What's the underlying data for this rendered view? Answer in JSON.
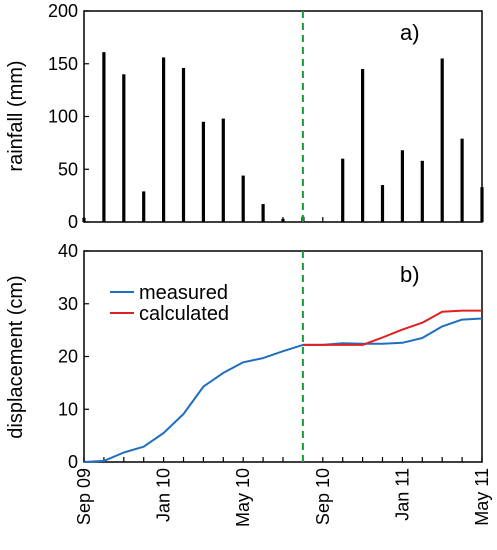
{
  "chart_data": [
    {
      "panel": "a)",
      "type": "bar",
      "ylabel": "rainfall (mm)",
      "ylim": [
        0,
        200
      ],
      "yticks": [
        0,
        50,
        100,
        150,
        200
      ],
      "x_dates": [
        "2009-09",
        "2009-10",
        "2009-11",
        "2009-12",
        "2010-01",
        "2010-02",
        "2010-03",
        "2010-04",
        "2010-05",
        "2010-06",
        "2010-07",
        "2010-08",
        "2010-09",
        "2010-10",
        "2010-11",
        "2010-12",
        "2011-01",
        "2011-02",
        "2011-03",
        "2011-04",
        "2011-05"
      ],
      "values": [
        4,
        161,
        140,
        29,
        156,
        146,
        95,
        98,
        44,
        17,
        3,
        5,
        0,
        60,
        145,
        35,
        68,
        58,
        155,
        79,
        33
      ],
      "bar_color": "#000000"
    },
    {
      "panel": "b)",
      "type": "line",
      "ylabel": "displacement (cm)",
      "ylim": [
        0,
        40
      ],
      "yticks": [
        0,
        10,
        20,
        30,
        40
      ],
      "x_tick_labels": [
        "Sep 09",
        "Jan 10",
        "May 10",
        "Sep 10",
        "Jan 11",
        "May 11"
      ],
      "legend": {
        "placement": "top-left"
      },
      "series": [
        {
          "name": "measured",
          "color": "#1f6fc1",
          "x": [
            "2009-09",
            "2009-10",
            "2009-11",
            "2009-12",
            "2010-01",
            "2010-02",
            "2010-03",
            "2010-04",
            "2010-05",
            "2010-06",
            "2010-07",
            "2010-08",
            "2010-09",
            "2010-10",
            "2010-11",
            "2010-12",
            "2011-01",
            "2011-02",
            "2011-03",
            "2011-04",
            "2011-05"
          ],
          "values": [
            0,
            0.2,
            1.8,
            2.9,
            5.5,
            9.1,
            14.3,
            16.9,
            18.9,
            19.7,
            21.0,
            22.2,
            22.2,
            22.5,
            22.4,
            22.4,
            22.6,
            23.5,
            25.7,
            27.0,
            27.2
          ]
        },
        {
          "name": "calculated",
          "color": "#e02020",
          "x": [
            "2010-08",
            "2010-09",
            "2010-10",
            "2010-11",
            "2010-12",
            "2011-01",
            "2011-02",
            "2011-03",
            "2011-04",
            "2011-05"
          ],
          "values": [
            22.2,
            22.2,
            22.2,
            22.2,
            23.6,
            25.1,
            26.4,
            28.5,
            28.7,
            28.7
          ]
        }
      ],
      "divider": {
        "x": "2010-08",
        "color": "#1a9a3a",
        "style": "dashed"
      }
    }
  ]
}
